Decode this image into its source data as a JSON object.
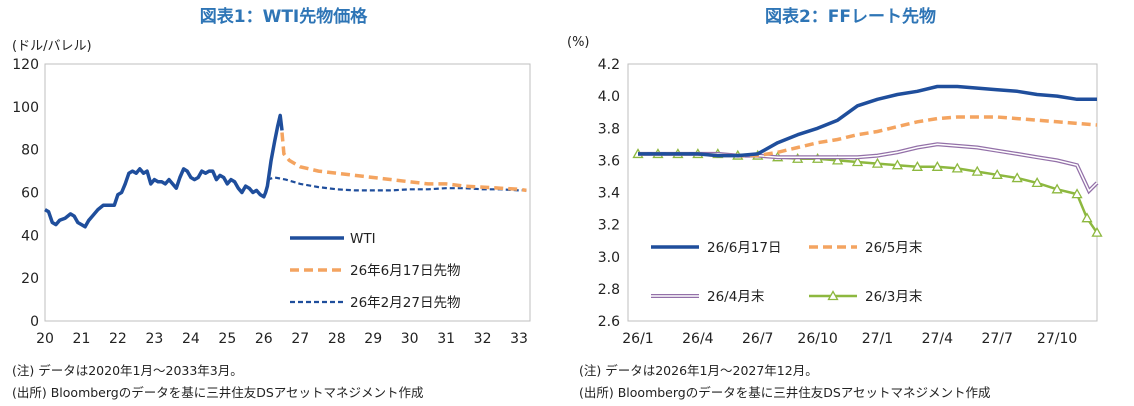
{
  "charts": [
    {
      "title": "図表1：WTI先物価格",
      "ylabel": "(ドル/バレル)",
      "note": "(注)  データは2020年1月～2033年3月。",
      "source": "(出所)  Bloombergのデータを基に三井住友DSアセットマネジメント作成",
      "chart_data": {
        "type": "line",
        "xlim": [
          2020.0,
          2033.3
        ],
        "ylim": [
          0,
          120
        ],
        "x_ticks": [
          20,
          21,
          22,
          23,
          24,
          25,
          26,
          27,
          28,
          29,
          30,
          31,
          32,
          33
        ],
        "y_ticks": [
          0,
          20,
          40,
          60,
          80,
          100,
          120
        ],
        "legend_position": "inside-bottom-right",
        "series": [
          {
            "name": "WTI",
            "color": "#1f4e9c",
            "style": "solid",
            "points": [
              [
                2020.0,
                52
              ],
              [
                2020.1,
                51
              ],
              [
                2020.2,
                46
              ],
              [
                2020.3,
                45
              ],
              [
                2020.4,
                47
              ],
              [
                2020.55,
                48
              ],
              [
                2020.7,
                50
              ],
              [
                2020.8,
                49
              ],
              [
                2020.9,
                46
              ],
              [
                2021.0,
                45
              ],
              [
                2021.1,
                44
              ],
              [
                2021.2,
                47
              ],
              [
                2021.3,
                49
              ],
              [
                2021.45,
                52
              ],
              [
                2021.6,
                54
              ],
              [
                2021.75,
                54
              ],
              [
                2021.9,
                54
              ],
              [
                2022.0,
                59
              ],
              [
                2022.1,
                60
              ],
              [
                2022.2,
                64
              ],
              [
                2022.3,
                69
              ],
              [
                2022.4,
                70
              ],
              [
                2022.5,
                69
              ],
              [
                2022.6,
                71
              ],
              [
                2022.7,
                69
              ],
              [
                2022.8,
                70
              ],
              [
                2022.9,
                64
              ],
              [
                2023.0,
                66
              ],
              [
                2023.1,
                65
              ],
              [
                2023.2,
                65
              ],
              [
                2023.3,
                64
              ],
              [
                2023.4,
                66
              ],
              [
                2023.5,
                64
              ],
              [
                2023.6,
                62
              ],
              [
                2023.7,
                67
              ],
              [
                2023.8,
                71
              ],
              [
                2023.9,
                70
              ],
              [
                2024.0,
                67
              ],
              [
                2024.1,
                66
              ],
              [
                2024.2,
                67
              ],
              [
                2024.3,
                70
              ],
              [
                2024.4,
                69
              ],
              [
                2024.5,
                70
              ],
              [
                2024.6,
                70
              ],
              [
                2024.7,
                66
              ],
              [
                2024.8,
                68
              ],
              [
                2024.9,
                67
              ],
              [
                2025.0,
                64
              ],
              [
                2025.1,
                66
              ],
              [
                2025.2,
                65
              ],
              [
                2025.3,
                62
              ],
              [
                2025.4,
                60
              ],
              [
                2025.5,
                63
              ],
              [
                2025.6,
                62
              ],
              [
                2025.7,
                60
              ],
              [
                2025.8,
                61
              ],
              [
                2025.9,
                59
              ],
              [
                2026.0,
                58
              ],
              [
                2026.05,
                60
              ],
              [
                2026.1,
                63
              ],
              [
                2026.2,
                75
              ],
              [
                2026.3,
                84
              ],
              [
                2026.38,
                91
              ],
              [
                2026.45,
                96
              ],
              [
                2026.5,
                89
              ]
            ]
          },
          {
            "name": "26年6月17日先物",
            "color": "#f4a460",
            "style": "dashed-thick",
            "points": [
              [
                2026.5,
                88
              ],
              [
                2026.55,
                78
              ],
              [
                2026.7,
                75
              ],
              [
                2027.0,
                72
              ],
              [
                2027.5,
                70
              ],
              [
                2028.0,
                69
              ],
              [
                2028.5,
                68
              ],
              [
                2029.0,
                67
              ],
              [
                2029.5,
                66
              ],
              [
                2030.0,
                65
              ],
              [
                2030.5,
                64
              ],
              [
                2031.0,
                64
              ],
              [
                2031.5,
                63
              ],
              [
                2032.0,
                62.5
              ],
              [
                2032.5,
                62
              ],
              [
                2033.0,
                61.5
              ],
              [
                2033.2,
                61
              ]
            ]
          },
          {
            "name": "26年2月27日先物",
            "color": "#1f4e9c",
            "style": "dashed-thin",
            "points": [
              [
                2026.1,
                66
              ],
              [
                2026.3,
                67
              ],
              [
                2026.6,
                66
              ],
              [
                2027.0,
                64
              ],
              [
                2027.5,
                62.5
              ],
              [
                2028.0,
                61.5
              ],
              [
                2028.5,
                61
              ],
              [
                2029.0,
                61
              ],
              [
                2029.5,
                61
              ],
              [
                2030.0,
                61.5
              ],
              [
                2030.5,
                61.5
              ],
              [
                2031.0,
                62
              ],
              [
                2031.5,
                62
              ],
              [
                2032.0,
                61.5
              ],
              [
                2032.5,
                61.5
              ],
              [
                2033.0,
                61
              ],
              [
                2033.2,
                61
              ]
            ]
          }
        ]
      }
    },
    {
      "title": "図表2：FFレート先物",
      "ylabel": "(%)",
      "note": "(注)  データは2026年1月～2027年12月。",
      "source": "(出所)  Bloombergのデータを基に三井住友DSアセットマネジメント作成",
      "chart_data": {
        "type": "line",
        "xlim": [
          0,
          23
        ],
        "ylim": [
          2.6,
          4.2
        ],
        "x_ticks": [
          0,
          3,
          6,
          9,
          12,
          15,
          18,
          21
        ],
        "x_tick_labels": [
          "26/1",
          "26/4",
          "26/7",
          "26/10",
          "27/1",
          "27/4",
          "27/7",
          "27/10"
        ],
        "y_ticks": [
          2.6,
          2.8,
          3.0,
          3.2,
          3.4,
          3.6,
          3.8,
          4.0,
          4.2
        ],
        "legend_position": "inside-bottom",
        "series": [
          {
            "name": "26/6月17日",
            "color": "#1f4e9c",
            "style": "solid",
            "points": [
              [
                0,
                3.64
              ],
              [
                1,
                3.64
              ],
              [
                2,
                3.64
              ],
              [
                3,
                3.64
              ],
              [
                4,
                3.63
              ],
              [
                5,
                3.63
              ],
              [
                6,
                3.64
              ],
              [
                7,
                3.71
              ],
              [
                8,
                3.76
              ],
              [
                9,
                3.8
              ],
              [
                10,
                3.85
              ],
              [
                11,
                3.94
              ],
              [
                12,
                3.98
              ],
              [
                13,
                4.01
              ],
              [
                14,
                4.03
              ],
              [
                15,
                4.06
              ],
              [
                16,
                4.06
              ],
              [
                17,
                4.05
              ],
              [
                18,
                4.04
              ],
              [
                19,
                4.03
              ],
              [
                20,
                4.01
              ],
              [
                21,
                4.0
              ],
              [
                22,
                3.98
              ],
              [
                23,
                3.98
              ]
            ]
          },
          {
            "name": "26/5月末",
            "color": "#f4a460",
            "style": "dashed-thick",
            "points": [
              [
                0,
                3.64
              ],
              [
                1,
                3.64
              ],
              [
                2,
                3.64
              ],
              [
                3,
                3.64
              ],
              [
                4,
                3.63
              ],
              [
                5,
                3.63
              ],
              [
                6,
                3.63
              ],
              [
                7,
                3.65
              ],
              [
                8,
                3.68
              ],
              [
                9,
                3.71
              ],
              [
                10,
                3.73
              ],
              [
                11,
                3.76
              ],
              [
                12,
                3.78
              ],
              [
                13,
                3.81
              ],
              [
                14,
                3.84
              ],
              [
                15,
                3.86
              ],
              [
                16,
                3.87
              ],
              [
                17,
                3.87
              ],
              [
                18,
                3.87
              ],
              [
                19,
                3.86
              ],
              [
                20,
                3.85
              ],
              [
                21,
                3.84
              ],
              [
                22,
                3.83
              ],
              [
                23,
                3.82
              ]
            ]
          },
          {
            "name": "26/4月末",
            "color": "#9370a8",
            "style": "double",
            "points": [
              [
                0,
                3.64
              ],
              [
                1,
                3.64
              ],
              [
                2,
                3.64
              ],
              [
                3,
                3.64
              ],
              [
                4,
                3.64
              ],
              [
                5,
                3.63
              ],
              [
                6,
                3.63
              ],
              [
                7,
                3.62
              ],
              [
                8,
                3.62
              ],
              [
                9,
                3.62
              ],
              [
                10,
                3.62
              ],
              [
                11,
                3.62
              ],
              [
                12,
                3.63
              ],
              [
                13,
                3.65
              ],
              [
                14,
                3.68
              ],
              [
                15,
                3.7
              ],
              [
                16,
                3.69
              ],
              [
                17,
                3.68
              ],
              [
                18,
                3.66
              ],
              [
                19,
                3.64
              ],
              [
                20,
                3.62
              ],
              [
                21,
                3.6
              ],
              [
                22,
                3.57
              ],
              [
                22.6,
                3.41
              ],
              [
                23,
                3.46
              ]
            ]
          },
          {
            "name": "26/3月末",
            "color": "#8db83f",
            "style": "solid-marker",
            "points": [
              [
                0,
                3.64
              ],
              [
                1,
                3.64
              ],
              [
                2,
                3.64
              ],
              [
                3,
                3.64
              ],
              [
                4,
                3.64
              ],
              [
                5,
                3.63
              ],
              [
                6,
                3.63
              ],
              [
                7,
                3.62
              ],
              [
                8,
                3.61
              ],
              [
                9,
                3.61
              ],
              [
                10,
                3.6
              ],
              [
                11,
                3.59
              ],
              [
                12,
                3.58
              ],
              [
                13,
                3.57
              ],
              [
                14,
                3.56
              ],
              [
                15,
                3.56
              ],
              [
                16,
                3.55
              ],
              [
                17,
                3.53
              ],
              [
                18,
                3.51
              ],
              [
                19,
                3.49
              ],
              [
                20,
                3.46
              ],
              [
                21,
                3.42
              ],
              [
                22,
                3.39
              ],
              [
                22.5,
                3.24
              ],
              [
                23,
                3.15
              ]
            ]
          }
        ]
      }
    }
  ]
}
